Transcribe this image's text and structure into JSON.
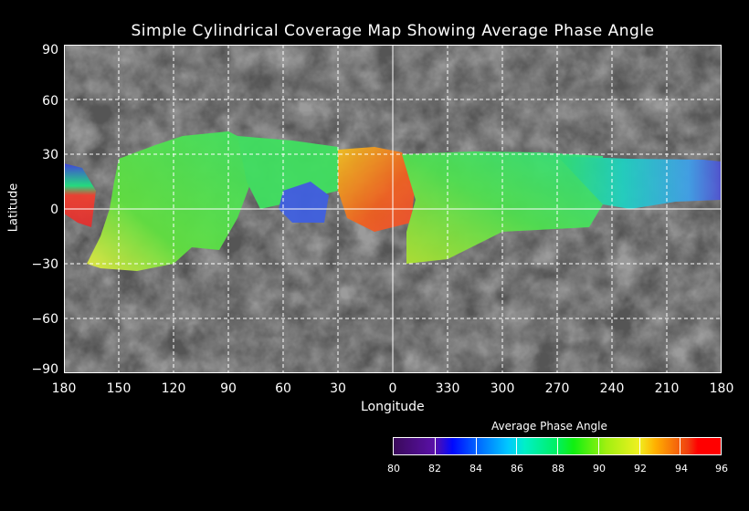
{
  "chart_data": {
    "type": "map",
    "title": "Simple Cylindrical Coverage Map Showing Average Phase Angle",
    "xlabel": "Longitude",
    "ylabel": "Latitude",
    "x_ticks": [
      "180",
      "150",
      "120",
      "90",
      "60",
      "30",
      "0",
      "330",
      "300",
      "270",
      "240",
      "210",
      "180"
    ],
    "y_ticks": [
      "90",
      "60",
      "30",
      "0",
      "−30",
      "−60",
      "−90"
    ],
    "grid": true,
    "colorbar": {
      "title": "Average Phase Angle",
      "range": [
        80,
        96
      ],
      "ticks": [
        "80",
        "82",
        "84",
        "86",
        "88",
        "90",
        "92",
        "94",
        "96"
      ],
      "colors": [
        "#3a0a5a",
        "#0008ff",
        "#00c8ff",
        "#00f060",
        "#a0f010",
        "#ffb000",
        "#ff0000"
      ]
    }
  }
}
